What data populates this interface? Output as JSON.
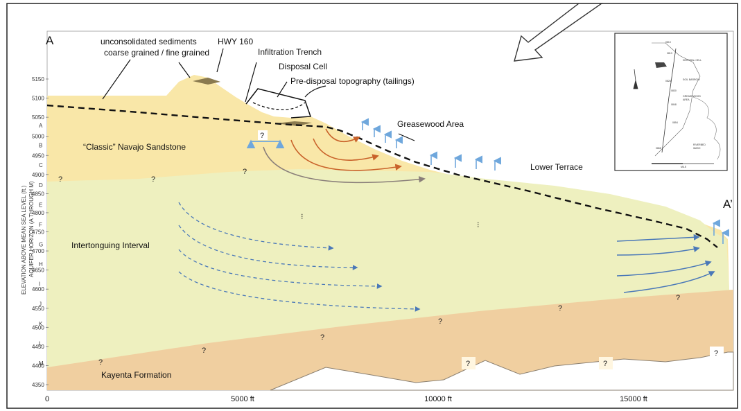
{
  "section_labels": {
    "start": "A",
    "end": "A’"
  },
  "callouts": {
    "sediments_line1": "unconsolidated sediments",
    "sediments_line2": "coarse grained  /  fine grained",
    "hwy": "HWY 160",
    "trench": "Infiltration Trench",
    "cell": "Disposal Cell",
    "predisposal": "Pre-disposal topography (tailings)",
    "greasewood": "Greasewood Area",
    "lower_terrace": "Lower Terrace",
    "navajo": "“Classic” Navajo Sandstone",
    "intertonguing": "Intertonguing Interval",
    "kayenta": "Kayenta Formation"
  },
  "axis": {
    "ylabel_line1": "ELEVATION ABOVE MEAN SEA LEVEL (ft.)",
    "ylabel_line2": "AQUIFER HORIZON (A THROUGH M)",
    "elevation_ticks": [
      "5150",
      "5100",
      "5050",
      "5000",
      "4950",
      "4900",
      "4850",
      "4800",
      "4750",
      "4700",
      "4650",
      "4600",
      "4550",
      "4500",
      "4450",
      "4400",
      "4350"
    ],
    "horizon_letters": [
      "A",
      "B",
      "C",
      "D",
      "E",
      "F",
      "G",
      "H",
      "I",
      "J",
      "K",
      "L",
      "M"
    ],
    "x_ticks": [
      "0",
      "5000 ft",
      "10000 ft",
      "15000 ft"
    ]
  },
  "unknown_marker": "?",
  "colors": {
    "sandstone": "#f9e7a8",
    "intertonguing": "#eef0bf",
    "kayenta": "#f0cfa0",
    "flow_orange": "#c9622a",
    "flow_blue": "#4a78b8",
    "water_table": "#111111",
    "upward_arrow": "#6fa7dc"
  },
  "inset_map": {
    "labels": [
      "0810",
      "0813",
      "0828",
      "0830",
      "0848",
      "0854",
      "0868"
    ],
    "notes": [
      "DISPOSAL CELL",
      "SOIL BARROW",
      "GREASEWOOD",
      "AREA",
      "FOR 0868",
      "RIVERBED",
      "WASH"
    ],
    "scale": "MILE"
  }
}
